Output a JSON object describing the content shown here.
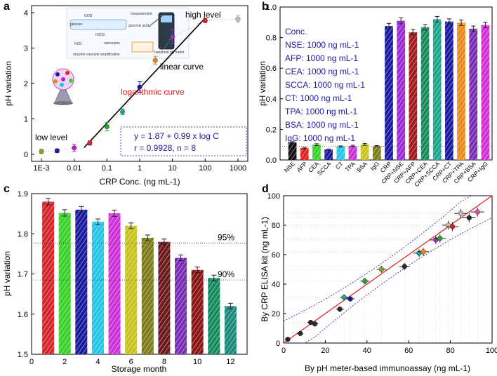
{
  "chart_data": [
    {
      "panel": "a",
      "type": "scatter",
      "xscale": "log",
      "xlabel": "CRP Conc. (ng mL-1)",
      "ylabel": "pH variation",
      "xlim": [
        0.0005,
        2000
      ],
      "ylim": [
        -0.2,
        4.2
      ],
      "xticks": [
        "1E-3",
        "0.01",
        "0.1",
        "1",
        "10",
        "100",
        "1000"
      ],
      "yticks": [
        "0",
        "1",
        "2",
        "3",
        "4"
      ],
      "points": [
        {
          "x": 0.001,
          "y": 0.08,
          "err": 0.06,
          "color": "#9a9a2a"
        },
        {
          "x": 0.003,
          "y": 0.1,
          "err": 0.05,
          "color": "#1a1aa0"
        },
        {
          "x": 0.01,
          "y": 0.18,
          "err": 0.1,
          "color": "#b21fcf"
        },
        {
          "x": 0.03,
          "y": 0.32,
          "err": 0.06,
          "color": "#d4242a"
        },
        {
          "x": 0.1,
          "y": 0.78,
          "err": 0.12,
          "color": "#29a329"
        },
        {
          "x": 0.3,
          "y": 1.2,
          "err": 0.08,
          "color": "#1aa58c"
        },
        {
          "x": 1,
          "y": 1.9,
          "err": 0.15,
          "color": "#1a1aa0"
        },
        {
          "x": 3,
          "y": 2.65,
          "err": 0.12,
          "color": "#e88a1c"
        },
        {
          "x": 10,
          "y": 3.32,
          "err": 0.2,
          "color": "#9a2ad4"
        },
        {
          "x": 100,
          "y": 3.78,
          "err": 0.06,
          "color": "#d4242a"
        },
        {
          "x": 1000,
          "y": 3.82,
          "err": 0.1,
          "color": "#bdbdbd"
        }
      ],
      "fit_line": {
        "x": [
          0.02,
          100
        ],
        "intercept": 1.87,
        "slope": 0.99
      },
      "labels": {
        "low": "low level",
        "high": "high level",
        "linear": "linear curve",
        "log": "logarithmic curve"
      },
      "equation_line1": "y = 1.87 + 0.99 x log C",
      "equation_line2": "r = 0.9928, n = 8",
      "inset_labels": [
        "measurement",
        "gluconic acid",
        "H2O",
        "H2O2",
        "GOD",
        "nanozyme",
        "handheld pH meter",
        "enzyme cascade amplification",
        "glucose"
      ]
    },
    {
      "panel": "b",
      "type": "bar",
      "ylabel": "pH variation",
      "ylim": [
        0,
        1.0
      ],
      "yticks": [
        "0.0",
        "0.2",
        "0.4",
        "0.6",
        "0.8",
        "1.0"
      ],
      "categories": [
        "NSE",
        "AFP",
        "CEA",
        "SCCA",
        "CT",
        "TPA",
        "BSA",
        "IgG",
        "CRP",
        "CRP+NSE",
        "CRP+AFP",
        "CRP+CEA",
        "CRP+SCCA",
        "CRP+CT",
        "CRP+TPA",
        "CRP+BSA",
        "CRP+IgG"
      ],
      "values": [
        0.115,
        0.078,
        0.1,
        0.068,
        0.088,
        0.092,
        0.102,
        0.09,
        0.875,
        0.91,
        0.835,
        0.868,
        0.92,
        0.905,
        0.897,
        0.858,
        0.882
      ],
      "errors": [
        0.005,
        0.004,
        0.006,
        0.004,
        0.004,
        0.004,
        0.006,
        0.004,
        0.018,
        0.02,
        0.018,
        0.018,
        0.018,
        0.018,
        0.018,
        0.018,
        0.018
      ],
      "colors": [
        "#111111",
        "#e41e1e",
        "#39d12a",
        "#1a1aa0",
        "#22c6e6",
        "#cf2fd6",
        "#c9c21d",
        "#7d7d1a",
        "#1a1aa0",
        "#9a2ad4",
        "#a01a1a",
        "#148a5c",
        "#1aa58c",
        "#1a1aa0",
        "#e88a1c",
        "#7a2bb5",
        "#cf2fd6"
      ],
      "baseline": 0.09,
      "legend_title": "Conc.",
      "legend": [
        "NSE: 1000 ng mL-1",
        "AFP: 1000 ng mL-1",
        "CEA: 1000 ng mL-1",
        "SCCA: 1000 ng mL-1",
        "CT: 1000 ng mL-1",
        "TPA: 1000 ng mL-1",
        "BSA: 1000 ng mL-1",
        "IgG: 1000 ng mL-1"
      ]
    },
    {
      "panel": "c",
      "type": "bar",
      "xlabel": "Storage month",
      "ylabel": "pH variation",
      "xlim": [
        0,
        13
      ],
      "ylim": [
        1.5,
        1.9
      ],
      "xticks": [
        "0",
        "2",
        "4",
        "6",
        "8",
        "10",
        "12"
      ],
      "yticks": [
        "1.5",
        "1.6",
        "1.7",
        "1.8",
        "1.9"
      ],
      "categories": [
        1,
        2,
        3,
        4,
        5,
        6,
        7,
        8,
        9,
        10,
        11,
        12
      ],
      "values": [
        1.88,
        1.852,
        1.86,
        1.83,
        1.851,
        1.82,
        1.79,
        1.78,
        1.74,
        1.71,
        1.69,
        1.62
      ],
      "errors": [
        0.008,
        0.008,
        0.008,
        0.007,
        0.008,
        0.007,
        0.007,
        0.007,
        0.007,
        0.007,
        0.007,
        0.007
      ],
      "colors": [
        "#d4242a",
        "#39d12a",
        "#1a1aa0",
        "#22c6e6",
        "#cf2fd6",
        "#c9c21d",
        "#7d7d1a",
        "#6a1a1a",
        "#7a2bb5",
        "#8a1313",
        "#148a5c",
        "#1a8a7a"
      ],
      "ref_lines": [
        {
          "y": 1.777,
          "label": "95%"
        },
        {
          "y": 1.685,
          "label": "90%"
        }
      ]
    },
    {
      "panel": "d",
      "type": "scatter",
      "xlabel": "By pH meter-based immunoassay (ng mL-1)",
      "ylabel": "By CRP ELISA kit (ng mL-1)",
      "xlim": [
        0,
        100
      ],
      "ylim": [
        0,
        100
      ],
      "xticks": [
        "0",
        "20",
        "40",
        "60",
        "80",
        "100"
      ],
      "yticks": [
        "0",
        "20",
        "40",
        "60",
        "80",
        "100"
      ],
      "points": [
        {
          "x": 2,
          "y": 2.5,
          "color": "#2a2a2a"
        },
        {
          "x": 8,
          "y": 6.5,
          "color": "#2a2a2a"
        },
        {
          "x": 13,
          "y": 14,
          "color": "#2a2a2a"
        },
        {
          "x": 15,
          "y": 13,
          "color": "#2a2a2a"
        },
        {
          "x": 27,
          "y": 23,
          "color": "#2a2a2a"
        },
        {
          "x": 29,
          "y": 31,
          "color": "#1aa58c"
        },
        {
          "x": 32,
          "y": 30,
          "color": "#1a1aa0"
        },
        {
          "x": 39,
          "y": 42,
          "color": "#29a329"
        },
        {
          "x": 47,
          "y": 50,
          "color": "#9a9a2a"
        },
        {
          "x": 58,
          "y": 52,
          "color": "#2a2a2a"
        },
        {
          "x": 65,
          "y": 61,
          "color": "#1aa58c"
        },
        {
          "x": 67,
          "y": 62,
          "color": "#e88a1c"
        },
        {
          "x": 73,
          "y": 70,
          "color": "#9a2ad4"
        },
        {
          "x": 75,
          "y": 71,
          "color": "#29a329"
        },
        {
          "x": 79,
          "y": 80,
          "color": "#bdbdbd"
        },
        {
          "x": 81,
          "y": 79,
          "color": "#d4242a"
        },
        {
          "x": 85,
          "y": 88,
          "color": "#bdbdbd"
        },
        {
          "x": 89,
          "y": 85,
          "color": "#2a2a2a"
        },
        {
          "x": 93,
          "y": 89,
          "color": "#e64ca0"
        }
      ],
      "fit_line": {
        "x": [
          0,
          100
        ],
        "intercept": 0,
        "slope": 1
      }
    }
  ]
}
